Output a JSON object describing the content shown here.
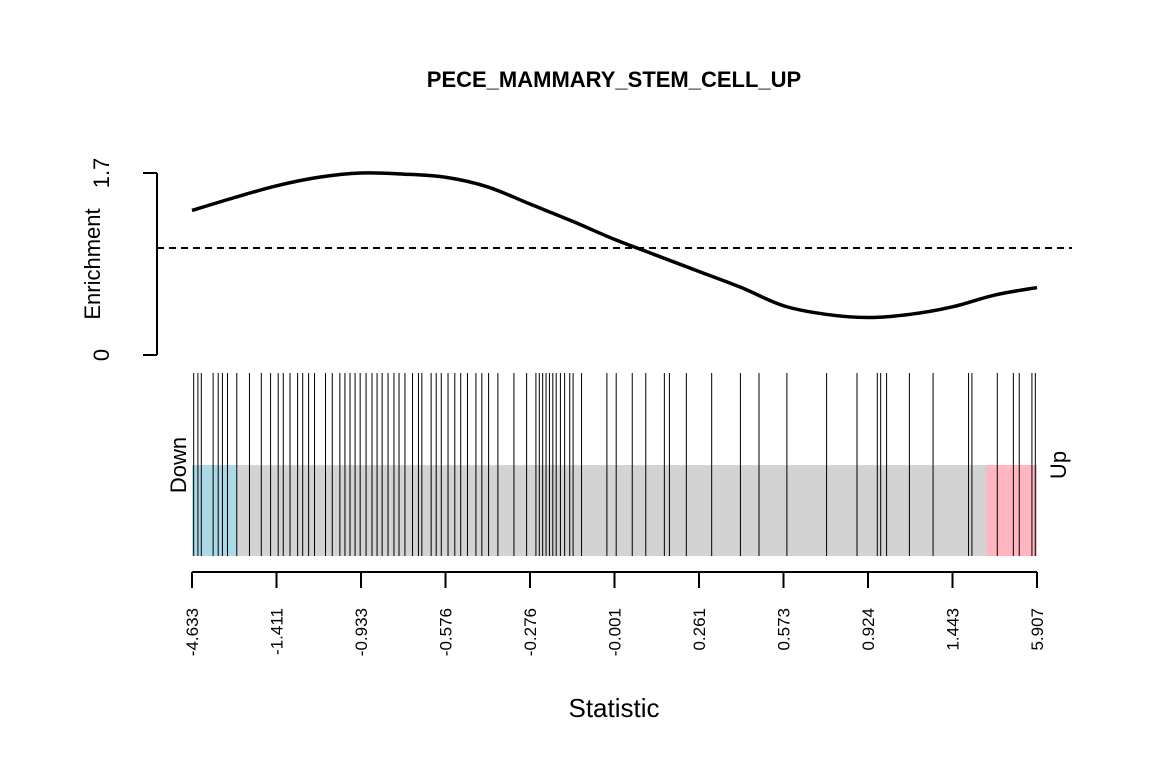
{
  "chart_data": {
    "type": "line",
    "title": "PECE_MAMMARY_STEM_CELL_UP",
    "enrichment_panel": {
      "ylabel": "Enrichment",
      "ylim": [
        0,
        1.7
      ],
      "y_ticks": [
        "0",
        "1.7"
      ],
      "reference_line": 1.0,
      "curve_position": [
        0,
        0.05,
        0.1,
        0.15,
        0.2,
        0.25,
        0.3,
        0.35,
        0.4,
        0.45,
        0.5,
        0.55,
        0.6,
        0.65,
        0.7,
        0.75,
        0.8,
        0.85,
        0.9,
        0.95,
        1.0
      ],
      "enrichment": [
        1.35,
        1.47,
        1.58,
        1.66,
        1.7,
        1.69,
        1.66,
        1.57,
        1.41,
        1.25,
        1.08,
        0.93,
        0.78,
        0.63,
        0.46,
        0.38,
        0.35,
        0.38,
        0.45,
        0.56,
        0.63
      ]
    },
    "barcode_panel": {
      "left_label": "Down",
      "right_label": "Up",
      "down_fraction": 0.053,
      "up_fraction": 0.06,
      "colors": {
        "down": "#add8e6",
        "middle": "#d3d3d3",
        "up": "#ffb6c1",
        "curve": "#000000"
      },
      "gene_positions": [
        0.002,
        0.007,
        0.011,
        0.025,
        0.031,
        0.036,
        0.042,
        0.053,
        0.068,
        0.082,
        0.093,
        0.102,
        0.108,
        0.116,
        0.125,
        0.131,
        0.138,
        0.145,
        0.158,
        0.166,
        0.175,
        0.181,
        0.187,
        0.193,
        0.199,
        0.206,
        0.213,
        0.219,
        0.225,
        0.232,
        0.239,
        0.245,
        0.252,
        0.261,
        0.268,
        0.272,
        0.283,
        0.289,
        0.295,
        0.303,
        0.311,
        0.318,
        0.326,
        0.336,
        0.343,
        0.351,
        0.362,
        0.381,
        0.396,
        0.407,
        0.411,
        0.415,
        0.419,
        0.423,
        0.427,
        0.431,
        0.436,
        0.441,
        0.447,
        0.451,
        0.461,
        0.491,
        0.502,
        0.521,
        0.537,
        0.559,
        0.565,
        0.585,
        0.615,
        0.649,
        0.671,
        0.704,
        0.751,
        0.787,
        0.811,
        0.815,
        0.822,
        0.849,
        0.877,
        0.923,
        0.919,
        0.953,
        0.972,
        0.979,
        0.994,
        0.998
      ]
    },
    "x_axis": {
      "xlabel": "Statistic",
      "tick_labels": [
        "-4.633",
        "-1.411",
        "-0.933",
        "-0.576",
        "-0.276",
        "-0.001",
        "0.261",
        "0.573",
        "0.924",
        "1.443",
        "5.907"
      ]
    }
  }
}
